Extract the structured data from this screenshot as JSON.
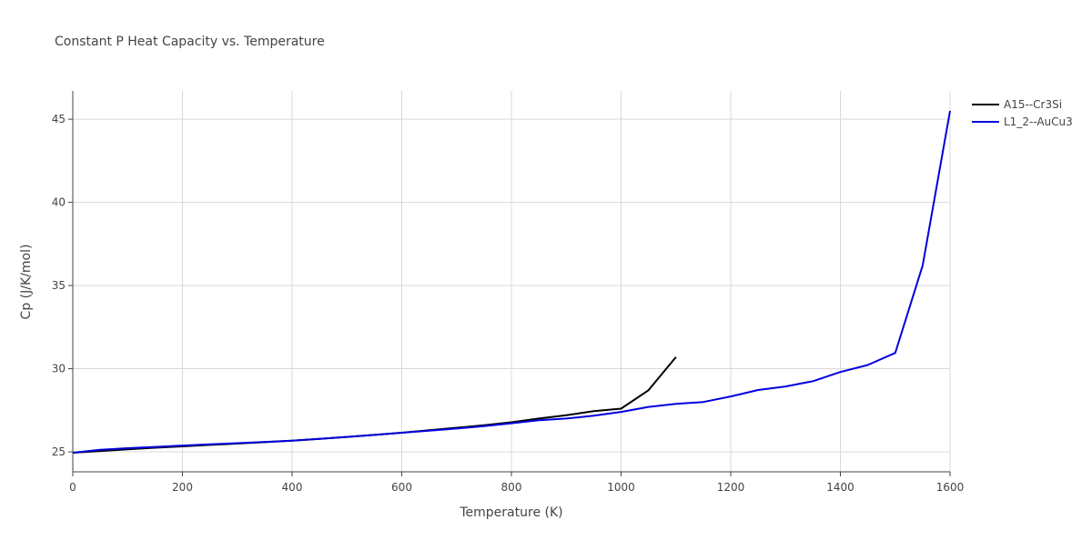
{
  "chart_data": {
    "type": "line",
    "title": "Constant P Heat Capacity vs. Temperature",
    "xlabel": "Temperature (K)",
    "ylabel": "Cp (J/K/mol)",
    "xlim": [
      0,
      1600
    ],
    "ylim": [
      23.8,
      46.7
    ],
    "xticks": [
      0,
      200,
      400,
      600,
      800,
      1000,
      1200,
      1400,
      1600
    ],
    "yticks": [
      25,
      30,
      35,
      40,
      45
    ],
    "grid": true,
    "legend_position": "top-right",
    "series": [
      {
        "name": "A15--Cr3Si",
        "color": "#000000",
        "x": [
          0,
          50,
          100,
          150,
          200,
          250,
          300,
          350,
          400,
          450,
          500,
          550,
          600,
          650,
          700,
          750,
          800,
          850,
          900,
          950,
          1000,
          1050,
          1100
        ],
        "y": [
          24.95,
          25.05,
          25.15,
          25.25,
          25.33,
          25.42,
          25.5,
          25.58,
          25.67,
          25.78,
          25.9,
          26.02,
          26.15,
          26.3,
          26.45,
          26.6,
          26.78,
          27.0,
          27.2,
          27.45,
          27.6,
          28.7,
          30.7
        ]
      },
      {
        "name": "L1_2--AuCu3",
        "color": "#0000dd",
        "x": [
          0,
          50,
          100,
          150,
          200,
          250,
          300,
          350,
          400,
          450,
          500,
          550,
          600,
          650,
          700,
          750,
          800,
          850,
          900,
          950,
          1000,
          1050,
          1100,
          1150,
          1200,
          1250,
          1300,
          1350,
          1400,
          1450,
          1500,
          1550,
          1600
        ],
        "y": [
          24.95,
          25.12,
          25.22,
          25.3,
          25.38,
          25.45,
          25.52,
          25.6,
          25.67,
          25.78,
          25.9,
          26.02,
          26.15,
          26.27,
          26.4,
          26.55,
          26.72,
          26.9,
          27.0,
          27.17,
          27.4,
          27.7,
          27.88,
          28.0,
          28.33,
          28.72,
          28.93,
          29.25,
          29.8,
          30.22,
          30.95,
          36.2,
          45.5
        ]
      }
    ]
  }
}
